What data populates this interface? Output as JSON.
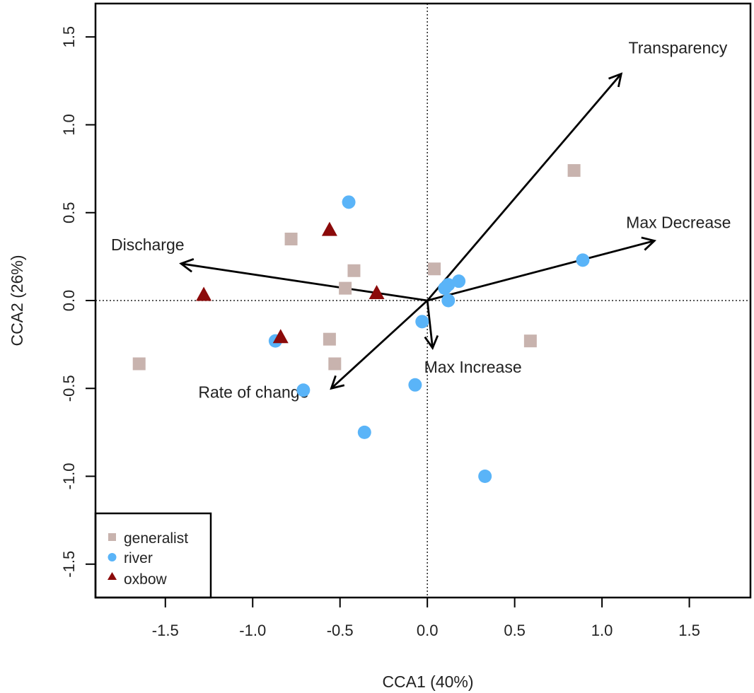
{
  "chart_data": {
    "type": "scatter",
    "title": "",
    "xlabel": "CCA1 (40%)",
    "ylabel": "CCA2 (26%)",
    "xlim": [
      -1.9,
      1.85
    ],
    "ylim": [
      -1.69,
      1.69
    ],
    "xticks": [
      -1.5,
      -1.0,
      -0.5,
      0.0,
      0.5,
      1.0,
      1.5
    ],
    "xtick_labels": [
      "-1.5",
      "-1.0",
      "-0.5",
      "0.0",
      "0.5",
      "1.0",
      "1.5"
    ],
    "yticks": [
      -1.5,
      -1.0,
      -0.5,
      0.0,
      0.5,
      1.0,
      1.5
    ],
    "ytick_labels": [
      "-1.5",
      "-1.0",
      "-0.5",
      "0.0",
      "0.5",
      "1.0",
      "1.5"
    ],
    "grid": false,
    "reference_lines": {
      "x": 0,
      "y": 0,
      "style": "dotted"
    },
    "legend_position": "bottom-left",
    "series": [
      {
        "name": "generalist",
        "marker": "square",
        "color": "#c8b3ae",
        "points": [
          {
            "x": -1.65,
            "y": -0.36
          },
          {
            "x": -0.78,
            "y": 0.35
          },
          {
            "x": -0.42,
            "y": 0.17
          },
          {
            "x": -0.47,
            "y": 0.07
          },
          {
            "x": -0.56,
            "y": -0.22
          },
          {
            "x": -0.53,
            "y": -0.36
          },
          {
            "x": 0.04,
            "y": 0.18
          },
          {
            "x": 0.59,
            "y": -0.23
          },
          {
            "x": 0.84,
            "y": 0.74
          }
        ]
      },
      {
        "name": "river",
        "marker": "circle",
        "color": "#5ab4f8",
        "points": [
          {
            "x": -0.45,
            "y": 0.56
          },
          {
            "x": -0.87,
            "y": -0.23
          },
          {
            "x": -0.71,
            "y": -0.51
          },
          {
            "x": -0.36,
            "y": -0.75
          },
          {
            "x": -0.07,
            "y": -0.48
          },
          {
            "x": -0.03,
            "y": -0.12
          },
          {
            "x": 0.1,
            "y": 0.07
          },
          {
            "x": 0.12,
            "y": 0.09
          },
          {
            "x": 0.12,
            "y": 0.0
          },
          {
            "x": 0.18,
            "y": 0.11
          },
          {
            "x": 0.33,
            "y": -1.0
          },
          {
            "x": 0.89,
            "y": 0.23
          }
        ]
      },
      {
        "name": "oxbow",
        "marker": "triangle",
        "color": "#8b0a0a",
        "points": [
          {
            "x": -1.28,
            "y": 0.03
          },
          {
            "x": -0.84,
            "y": -0.21
          },
          {
            "x": -0.56,
            "y": 0.4
          },
          {
            "x": -0.29,
            "y": 0.04
          }
        ]
      }
    ],
    "vectors": [
      {
        "name": "Transparency",
        "x": 1.11,
        "y": 1.29
      },
      {
        "name": "Max Decrease",
        "x": 1.3,
        "y": 0.34
      },
      {
        "name": "Discharge",
        "x": -1.41,
        "y": 0.21
      },
      {
        "name": "Max Increase",
        "x": 0.03,
        "y": -0.27
      },
      {
        "name": "Rate of change",
        "x": -0.55,
        "y": -0.5
      }
    ]
  }
}
